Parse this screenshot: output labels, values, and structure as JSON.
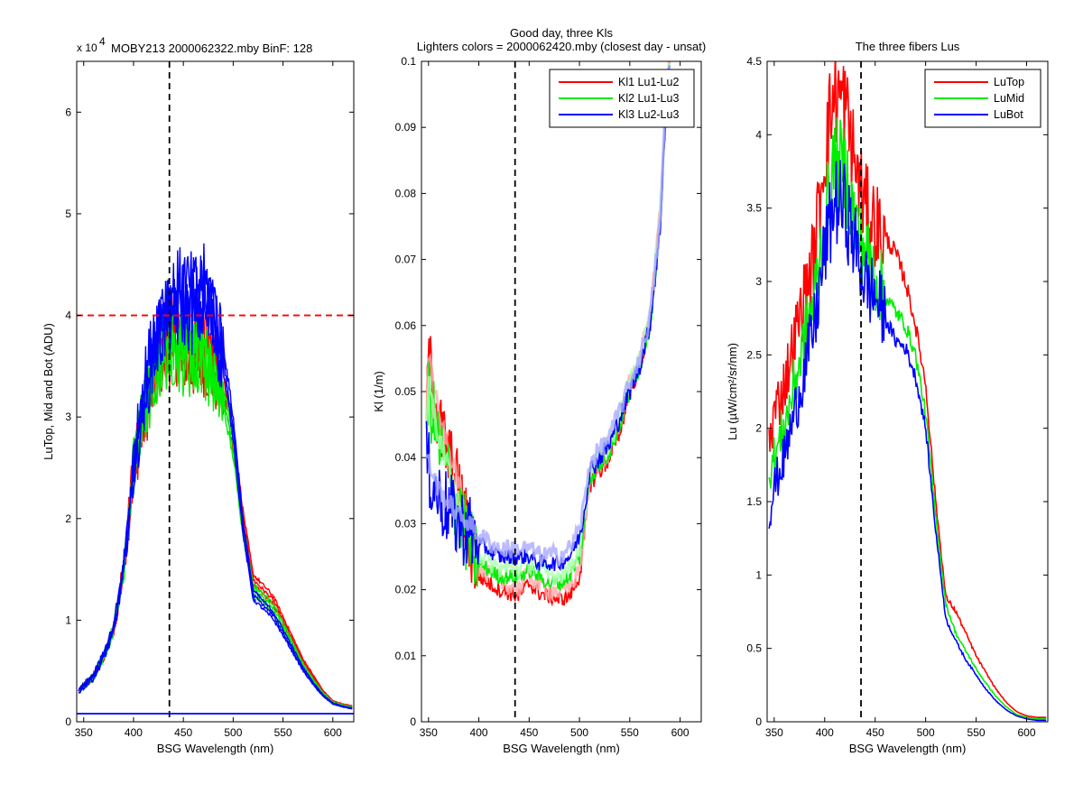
{
  "chart_data": [
    {
      "type": "line",
      "title": "MOBY213  2000062322.mby BinF: 128",
      "exponent_label": "x 10",
      "exponent_power": "4",
      "xlabel": "BSG Wavelength (nm)",
      "ylabel": "LuTop, Mid and Bot (ADU)",
      "xlim": [
        343,
        621
      ],
      "ylim": [
        0,
        65000
      ],
      "xticks": [
        350,
        400,
        450,
        500,
        550,
        600
      ],
      "yticks": [
        0,
        10000,
        20000,
        30000,
        40000,
        50000,
        60000
      ],
      "ytick_labels": [
        "0",
        "1",
        "2",
        "3",
        "4",
        "5",
        "6"
      ],
      "reference_lines": [
        {
          "orientation": "vertical",
          "value": 436,
          "color": "#000000",
          "style": "dashed"
        },
        {
          "orientation": "horizontal",
          "value": 40000,
          "color": "#ff0000",
          "style": "dashed"
        },
        {
          "orientation": "horizontal",
          "value": 800,
          "color": "#0000ff",
          "style": "solid"
        }
      ],
      "series": [
        {
          "color": "#ff0000",
          "x": [
            345,
            360,
            370,
            380,
            390,
            400,
            410,
            420,
            430,
            440,
            450,
            460,
            470,
            480,
            490,
            500,
            510,
            520,
            530,
            540,
            550,
            560,
            570,
            580,
            590,
            600,
            610,
            620
          ],
          "y": [
            3000,
            4500,
            6500,
            9000,
            15000,
            25000,
            30000,
            34000,
            37000,
            38000,
            37000,
            36000,
            36500,
            35000,
            33000,
            28000,
            20000,
            14000,
            13000,
            12000,
            10000,
            8000,
            6000,
            4500,
            3000,
            2000,
            1700,
            1500
          ]
        },
        {
          "color": "#00ee00",
          "x": [
            345,
            360,
            370,
            380,
            390,
            400,
            410,
            420,
            430,
            440,
            450,
            460,
            470,
            480,
            490,
            500,
            510,
            520,
            530,
            540,
            550,
            560,
            570,
            580,
            590,
            600,
            610,
            620
          ],
          "y": [
            3000,
            4500,
            6500,
            9000,
            15000,
            25000,
            30000,
            34000,
            37000,
            37500,
            36500,
            36000,
            36500,
            34500,
            32000,
            27000,
            19000,
            13000,
            12200,
            11200,
            9400,
            7500,
            5600,
            4100,
            2800,
            1900,
            1600,
            1400
          ]
        },
        {
          "color": "#0000ff",
          "x": [
            345,
            360,
            370,
            380,
            390,
            400,
            410,
            420,
            430,
            440,
            450,
            460,
            470,
            480,
            490,
            500,
            510,
            520,
            530,
            540,
            550,
            560,
            570,
            580,
            590,
            600,
            610,
            620
          ],
          "y": [
            3000,
            4500,
            6500,
            9000,
            15000,
            25000,
            32000,
            37000,
            40000,
            41000,
            42000,
            41000,
            42000,
            40000,
            36000,
            29000,
            19000,
            12500,
            11500,
            10500,
            8800,
            7000,
            5200,
            3800,
            2600,
            1800,
            1500,
            1300
          ]
        }
      ]
    },
    {
      "type": "line",
      "title": "Good day, three Kls",
      "subtitle": "Lighters colors = 2000062420.mby (closest day - unsat)",
      "xlabel": "BSG Wavelength (nm)",
      "ylabel": "Kl (1/m)",
      "xlim": [
        343,
        621
      ],
      "ylim": [
        0,
        0.1
      ],
      "xticks": [
        350,
        400,
        450,
        500,
        550,
        600
      ],
      "yticks": [
        0,
        0.01,
        0.02,
        0.03,
        0.04,
        0.05,
        0.06,
        0.07,
        0.08,
        0.09,
        0.1
      ],
      "ytick_labels": [
        "0",
        "0.01",
        "0.02",
        "0.03",
        "0.04",
        "0.05",
        "0.06",
        "0.07",
        "0.08",
        "0.09",
        "0.1"
      ],
      "legend_position": "top-right",
      "reference_lines": [
        {
          "orientation": "vertical",
          "value": 436,
          "color": "#000000",
          "style": "dashed"
        }
      ],
      "series": [
        {
          "name": "Kl1 Lu1-Lu2",
          "color": "#ff0000",
          "x": [
            348,
            350,
            360,
            370,
            380,
            390,
            400,
            410,
            420,
            430,
            440,
            450,
            460,
            470,
            480,
            490,
            500,
            505,
            510,
            520,
            530,
            540,
            550,
            560,
            570,
            580,
            585,
            590
          ],
          "y": [
            0.045,
            0.055,
            0.045,
            0.04,
            0.035,
            0.028,
            0.022,
            0.021,
            0.02,
            0.0195,
            0.019,
            0.021,
            0.0195,
            0.019,
            0.0185,
            0.019,
            0.022,
            0.028,
            0.036,
            0.038,
            0.04,
            0.044,
            0.05,
            0.054,
            0.06,
            0.075,
            0.09,
            0.1
          ]
        },
        {
          "name": "Kl2 Lu1-Lu3",
          "color": "#00ee00",
          "x": [
            348,
            350,
            360,
            370,
            380,
            390,
            400,
            410,
            420,
            430,
            440,
            450,
            460,
            470,
            480,
            490,
            500,
            505,
            510,
            520,
            530,
            540,
            550,
            560,
            570,
            580,
            585,
            590
          ],
          "y": [
            0.043,
            0.05,
            0.042,
            0.037,
            0.032,
            0.027,
            0.024,
            0.023,
            0.022,
            0.022,
            0.022,
            0.023,
            0.022,
            0.021,
            0.021,
            0.022,
            0.025,
            0.03,
            0.037,
            0.039,
            0.041,
            0.045,
            0.05,
            0.054,
            0.06,
            0.075,
            0.09,
            0.1
          ]
        },
        {
          "name": "Kl3 Lu2-Lu3",
          "color": "#0000ff",
          "x": [
            348,
            350,
            360,
            370,
            380,
            390,
            400,
            410,
            420,
            430,
            440,
            450,
            460,
            470,
            480,
            490,
            500,
            505,
            510,
            520,
            530,
            540,
            550,
            560,
            570,
            580,
            585,
            590
          ],
          "y": [
            0.04,
            0.038,
            0.034,
            0.032,
            0.03,
            0.029,
            0.027,
            0.026,
            0.025,
            0.025,
            0.025,
            0.025,
            0.024,
            0.024,
            0.024,
            0.025,
            0.028,
            0.032,
            0.038,
            0.04,
            0.042,
            0.046,
            0.05,
            0.054,
            0.06,
            0.074,
            0.09,
            0.1
          ]
        }
      ]
    },
    {
      "type": "line",
      "title": "The three fibers Lus",
      "xlabel": "BSG Wavelength (nm)",
      "ylabel": "Lu (µW/cm²/sr/nm)",
      "xlim": [
        343,
        621
      ],
      "ylim": [
        0,
        4.5
      ],
      "xticks": [
        350,
        400,
        450,
        500,
        550,
        600
      ],
      "yticks": [
        0,
        0.5,
        1,
        1.5,
        2,
        2.5,
        3,
        3.5,
        4,
        4.5
      ],
      "ytick_labels": [
        "0",
        "0.5",
        "1",
        "1.5",
        "2",
        "2.5",
        "3",
        "3.5",
        "4",
        "4.5"
      ],
      "legend_position": "top-right",
      "reference_lines": [
        {
          "orientation": "vertical",
          "value": 436,
          "color": "#000000",
          "style": "dashed"
        }
      ],
      "series": [
        {
          "name": "LuTop",
          "color": "#ff0000",
          "x": [
            345,
            350,
            360,
            370,
            380,
            390,
            400,
            410,
            420,
            430,
            440,
            450,
            460,
            470,
            480,
            490,
            500,
            510,
            520,
            530,
            540,
            550,
            560,
            570,
            580,
            590,
            600,
            610,
            620
          ],
          "y": [
            1.9,
            2.1,
            2.3,
            2.6,
            2.9,
            3.2,
            3.9,
            4.3,
            4.2,
            3.8,
            3.5,
            3.4,
            3.3,
            3.2,
            3.0,
            2.7,
            2.3,
            1.5,
            0.85,
            0.75,
            0.6,
            0.45,
            0.33,
            0.22,
            0.13,
            0.07,
            0.04,
            0.03,
            0.03
          ]
        },
        {
          "name": "LuMid",
          "color": "#00ee00",
          "x": [
            345,
            350,
            360,
            370,
            380,
            390,
            400,
            410,
            420,
            430,
            440,
            450,
            460,
            470,
            480,
            490,
            500,
            510,
            520,
            530,
            540,
            550,
            560,
            570,
            580,
            590,
            600,
            610,
            620
          ],
          "y": [
            1.7,
            1.8,
            2.0,
            2.3,
            2.6,
            2.9,
            3.4,
            3.8,
            3.75,
            3.4,
            3.2,
            3.05,
            2.9,
            2.8,
            2.7,
            2.5,
            2.1,
            1.4,
            0.8,
            0.6,
            0.48,
            0.36,
            0.26,
            0.17,
            0.1,
            0.05,
            0.03,
            0.02,
            0.02
          ]
        },
        {
          "name": "LuBot",
          "color": "#0000ff",
          "x": [
            345,
            350,
            360,
            370,
            380,
            390,
            400,
            410,
            420,
            430,
            440,
            450,
            460,
            470,
            480,
            490,
            500,
            510,
            520,
            530,
            540,
            550,
            560,
            570,
            580,
            590,
            600,
            610,
            620
          ],
          "y": [
            1.4,
            1.6,
            1.8,
            2.1,
            2.4,
            2.7,
            3.2,
            3.55,
            3.5,
            3.25,
            3.0,
            2.9,
            2.75,
            2.6,
            2.55,
            2.35,
            2.0,
            1.3,
            0.7,
            0.55,
            0.42,
            0.32,
            0.22,
            0.14,
            0.08,
            0.04,
            0.02,
            0.01,
            0.01
          ]
        }
      ]
    }
  ]
}
